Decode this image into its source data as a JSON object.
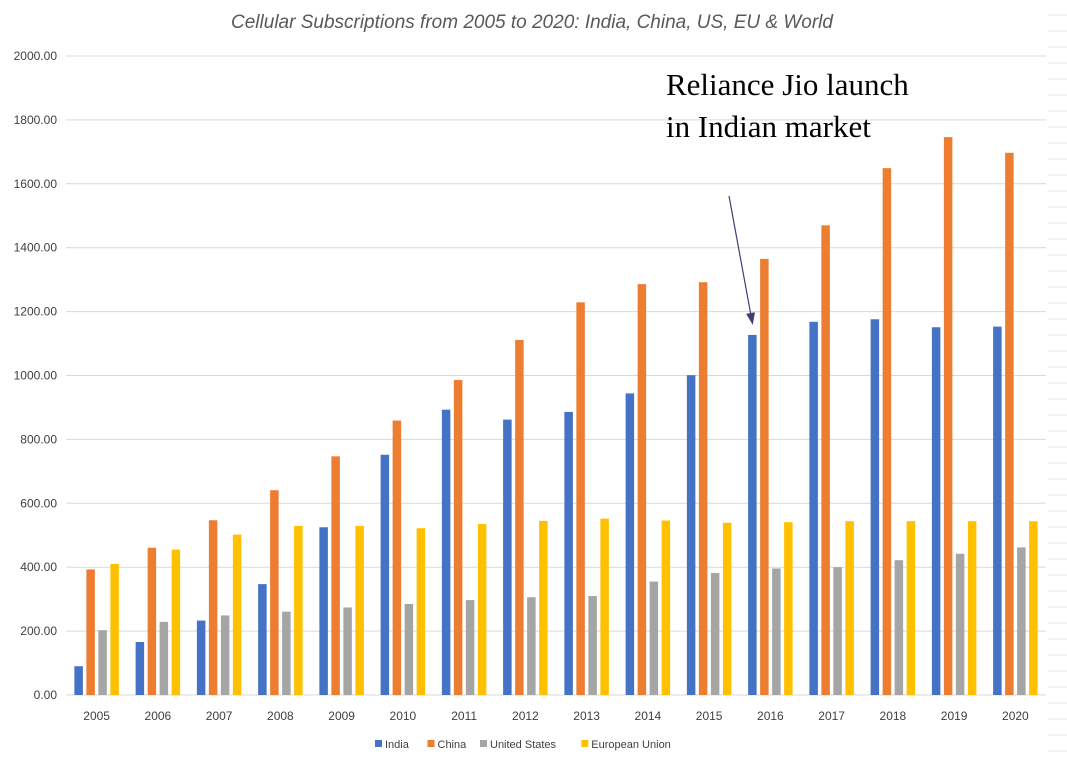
{
  "chart_data": {
    "type": "bar",
    "title": "Cellular Subscriptions from 2005 to 2020: India, China, US, EU & World",
    "xlabel": "",
    "ylabel": "",
    "ylim": [
      0,
      2000
    ],
    "yticks": [
      "0.00",
      "200.00",
      "400.00",
      "600.00",
      "800.00",
      "1000.00",
      "1200.00",
      "1400.00",
      "1600.00",
      "1800.00",
      "2000.00"
    ],
    "categories": [
      "2005",
      "2006",
      "2007",
      "2008",
      "2009",
      "2010",
      "2011",
      "2012",
      "2013",
      "2014",
      "2015",
      "2016",
      "2017",
      "2018",
      "2019",
      "2020"
    ],
    "series": [
      {
        "name": "India",
        "color": "#4472c4",
        "values": [
          90,
          166,
          233,
          347,
          525,
          752,
          893,
          862,
          886,
          944,
          1001,
          1127,
          1168,
          1176,
          1151,
          1153
        ]
      },
      {
        "name": "China",
        "color": "#ed7d31",
        "values": [
          393,
          461,
          547,
          641,
          747,
          859,
          986,
          1111,
          1229,
          1286,
          1292,
          1365,
          1470,
          1649,
          1746,
          1697
        ]
      },
      {
        "name": "United States",
        "color": "#a5a5a5",
        "values": [
          203,
          229,
          249,
          261,
          274,
          285,
          297,
          306,
          310,
          355,
          382,
          396,
          400,
          422,
          442,
          462
        ]
      },
      {
        "name": "European Union",
        "color": "#ffc000",
        "values": [
          410,
          455,
          502,
          529,
          529,
          522,
          535,
          545,
          552,
          546,
          539,
          541,
          544,
          544,
          544,
          544
        ]
      }
    ],
    "grid": true,
    "legend_position": "bottom",
    "annotation": {
      "text": "Reliance Jio launch in Indian market",
      "target_category": "2016",
      "target_series": "India"
    },
    "colors": {
      "axis_text": "#404040",
      "grid": "#d9d9d9",
      "arrow": "#3f3f76"
    }
  }
}
